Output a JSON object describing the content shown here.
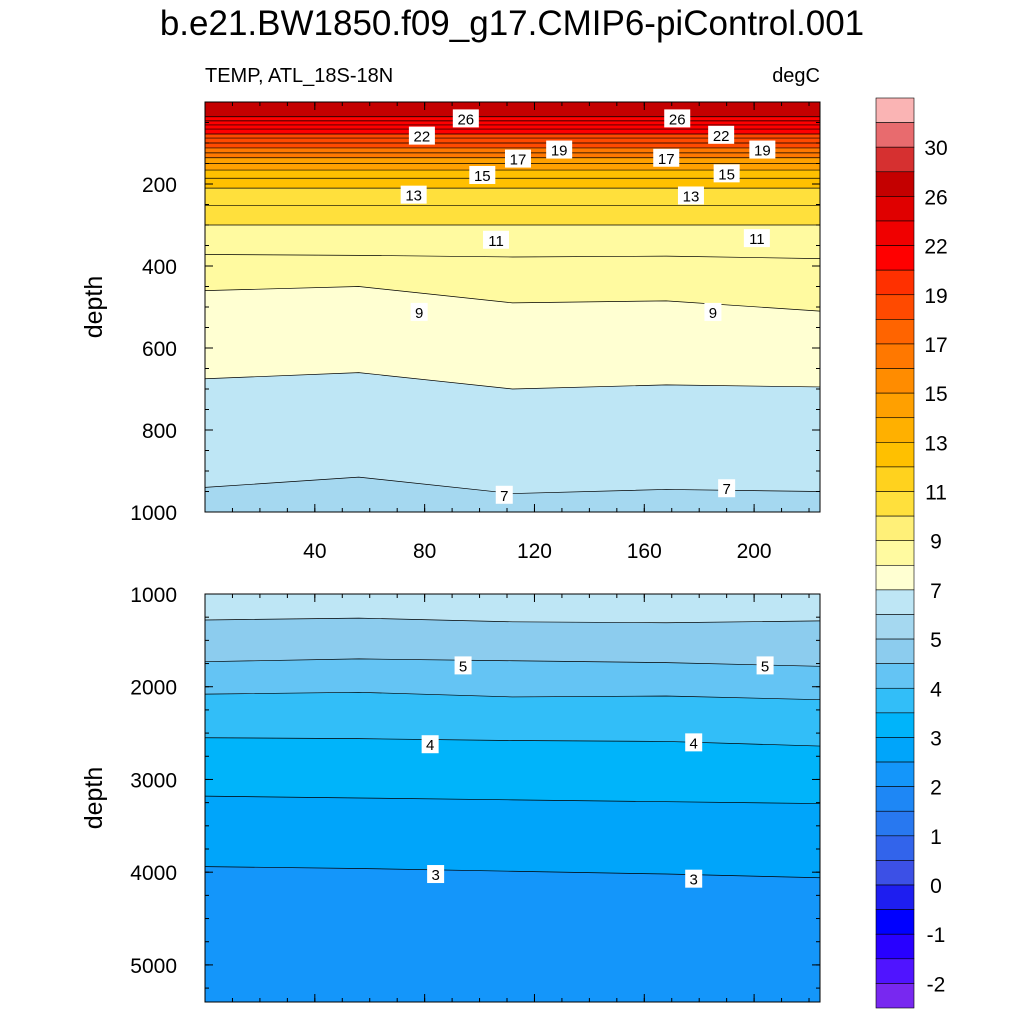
{
  "title": "b.e21.BW1850.f09_g17.CMIP6-piControl.001",
  "chart_data": {
    "type": "contour",
    "left_string": "TEMP, ATL_18S-18N",
    "right_string": "degC",
    "ylabel": "depth",
    "x_ticks": [
      40,
      80,
      120,
      160,
      200
    ],
    "x_range": [
      0,
      224
    ],
    "top_panel": {
      "y_range": [
        0,
        1000
      ],
      "y_ticks": [
        200,
        400,
        600,
        800,
        1000
      ],
      "contour_lines": [
        {
          "level": 26,
          "depth": [
            36,
            36,
            36,
            36,
            36
          ]
        },
        {
          "level": 25,
          "depth": [
            46,
            46,
            46,
            46,
            46
          ]
        },
        {
          "level": 24,
          "depth": [
            56,
            56,
            56,
            56,
            56
          ]
        },
        {
          "level": 23,
          "depth": [
            66,
            66,
            66,
            66,
            66
          ]
        },
        {
          "level": 22,
          "depth": [
            78,
            78,
            78,
            78,
            78
          ]
        },
        {
          "level": 21,
          "depth": [
            88,
            88,
            88,
            88,
            88
          ]
        },
        {
          "level": 20,
          "depth": [
            100,
            100,
            100,
            100,
            100
          ]
        },
        {
          "level": 19,
          "depth": [
            112,
            112,
            112,
            112,
            112
          ]
        },
        {
          "level": 18,
          "depth": [
            124,
            124,
            124,
            124,
            124
          ]
        },
        {
          "level": 17,
          "depth": [
            136,
            136,
            136,
            136,
            136
          ]
        },
        {
          "level": 16,
          "depth": [
            150,
            150,
            150,
            150,
            150
          ]
        },
        {
          "level": 15,
          "depth": [
            166,
            166,
            166,
            166,
            166
          ]
        },
        {
          "level": 14,
          "depth": [
            186,
            186,
            186,
            186,
            186
          ]
        },
        {
          "level": 13,
          "depth": [
            210,
            210,
            210,
            210,
            210
          ]
        },
        {
          "level": 12,
          "depth": [
            252,
            252,
            252,
            252,
            252
          ]
        },
        {
          "level": 11,
          "depth": [
            300,
            300,
            300,
            300,
            300
          ]
        },
        {
          "level": 10,
          "depth": [
            372,
            374,
            378,
            376,
            382
          ]
        },
        {
          "level": 9,
          "depth": [
            460,
            450,
            490,
            485,
            510
          ]
        },
        {
          "level": 8,
          "depth": [
            675,
            660,
            700,
            690,
            695
          ]
        },
        {
          "level": 7,
          "depth": [
            940,
            915,
            955,
            945,
            950
          ]
        }
      ],
      "labels": [
        {
          "text": "26",
          "x": 95,
          "y": 40
        },
        {
          "text": "26",
          "x": 172,
          "y": 40
        },
        {
          "text": "22",
          "x": 79,
          "y": 82
        },
        {
          "text": "22",
          "x": 188,
          "y": 80
        },
        {
          "text": "19",
          "x": 129,
          "y": 116
        },
        {
          "text": "19",
          "x": 203,
          "y": 116
        },
        {
          "text": "17",
          "x": 114,
          "y": 138
        },
        {
          "text": "17",
          "x": 168,
          "y": 136
        },
        {
          "text": "15",
          "x": 101,
          "y": 178
        },
        {
          "text": "15",
          "x": 190,
          "y": 174
        },
        {
          "text": "13",
          "x": 76,
          "y": 226
        },
        {
          "text": "13",
          "x": 177,
          "y": 228
        },
        {
          "text": "11",
          "x": 106,
          "y": 336
        },
        {
          "text": "11",
          "x": 201,
          "y": 332
        },
        {
          "text": "9",
          "x": 78,
          "y": 512
        },
        {
          "text": "9",
          "x": 185,
          "y": 512
        },
        {
          "text": "7",
          "x": 109,
          "y": 958
        },
        {
          "text": "7",
          "x": 190,
          "y": 942
        }
      ]
    },
    "bottom_panel": {
      "y_range": [
        1000,
        5400
      ],
      "y_ticks": [
        1000,
        2000,
        3000,
        4000,
        5000
      ],
      "contour_lines": [
        {
          "level": 6,
          "depth": [
            1280,
            1260,
            1300,
            1310,
            1290
          ]
        },
        {
          "level": 5,
          "depth": [
            1730,
            1700,
            1720,
            1740,
            1780
          ]
        },
        {
          "level": 4.5,
          "depth": [
            2080,
            2060,
            2110,
            2100,
            2140
          ]
        },
        {
          "level": 4,
          "depth": [
            2550,
            2560,
            2580,
            2590,
            2640
          ]
        },
        {
          "level": 3.5,
          "depth": [
            3180,
            3200,
            3220,
            3240,
            3260
          ]
        },
        {
          "level": 3,
          "depth": [
            3940,
            3960,
            3990,
            4020,
            4060
          ]
        }
      ],
      "labels": [
        {
          "text": "5",
          "x": 94,
          "y": 1770
        },
        {
          "text": "5",
          "x": 204,
          "y": 1770
        },
        {
          "text": "4",
          "x": 82,
          "y": 2620
        },
        {
          "text": "4",
          "x": 178,
          "y": 2600
        },
        {
          "text": "3",
          "x": 84,
          "y": 4020
        },
        {
          "text": "3",
          "x": 178,
          "y": 4070
        }
      ]
    },
    "colorbar": {
      "labels": [
        "30",
        "26",
        "22",
        "19",
        "17",
        "15",
        "13",
        "11",
        "9",
        "7",
        "5",
        "4",
        "3",
        "2",
        "1",
        "0",
        "-1",
        "-2"
      ],
      "colors": [
        "#fab4b4",
        "#e86b6e",
        "#d63030",
        "#c40000",
        "#e00000",
        "#f00000",
        "#ff0000",
        "#ff3000",
        "#ff4a00",
        "#ff6400",
        "#ff7800",
        "#ff8c00",
        "#ffa000",
        "#ffb000",
        "#ffc000",
        "#ffd21e",
        "#ffe03c",
        "#fff078",
        "#fffaa0",
        "#ffffd2",
        "#bee6f5",
        "#a5d8f0",
        "#8cccee",
        "#64c4f4",
        "#32bef8",
        "#00b4fa",
        "#00a5fa",
        "#1496fa",
        "#1e87f5",
        "#2878f0",
        "#3264eb",
        "#3c50e6",
        "#1e1ef0",
        "#0000ff",
        "#2800ff",
        "#5014ff",
        "#7828f0"
      ]
    }
  }
}
